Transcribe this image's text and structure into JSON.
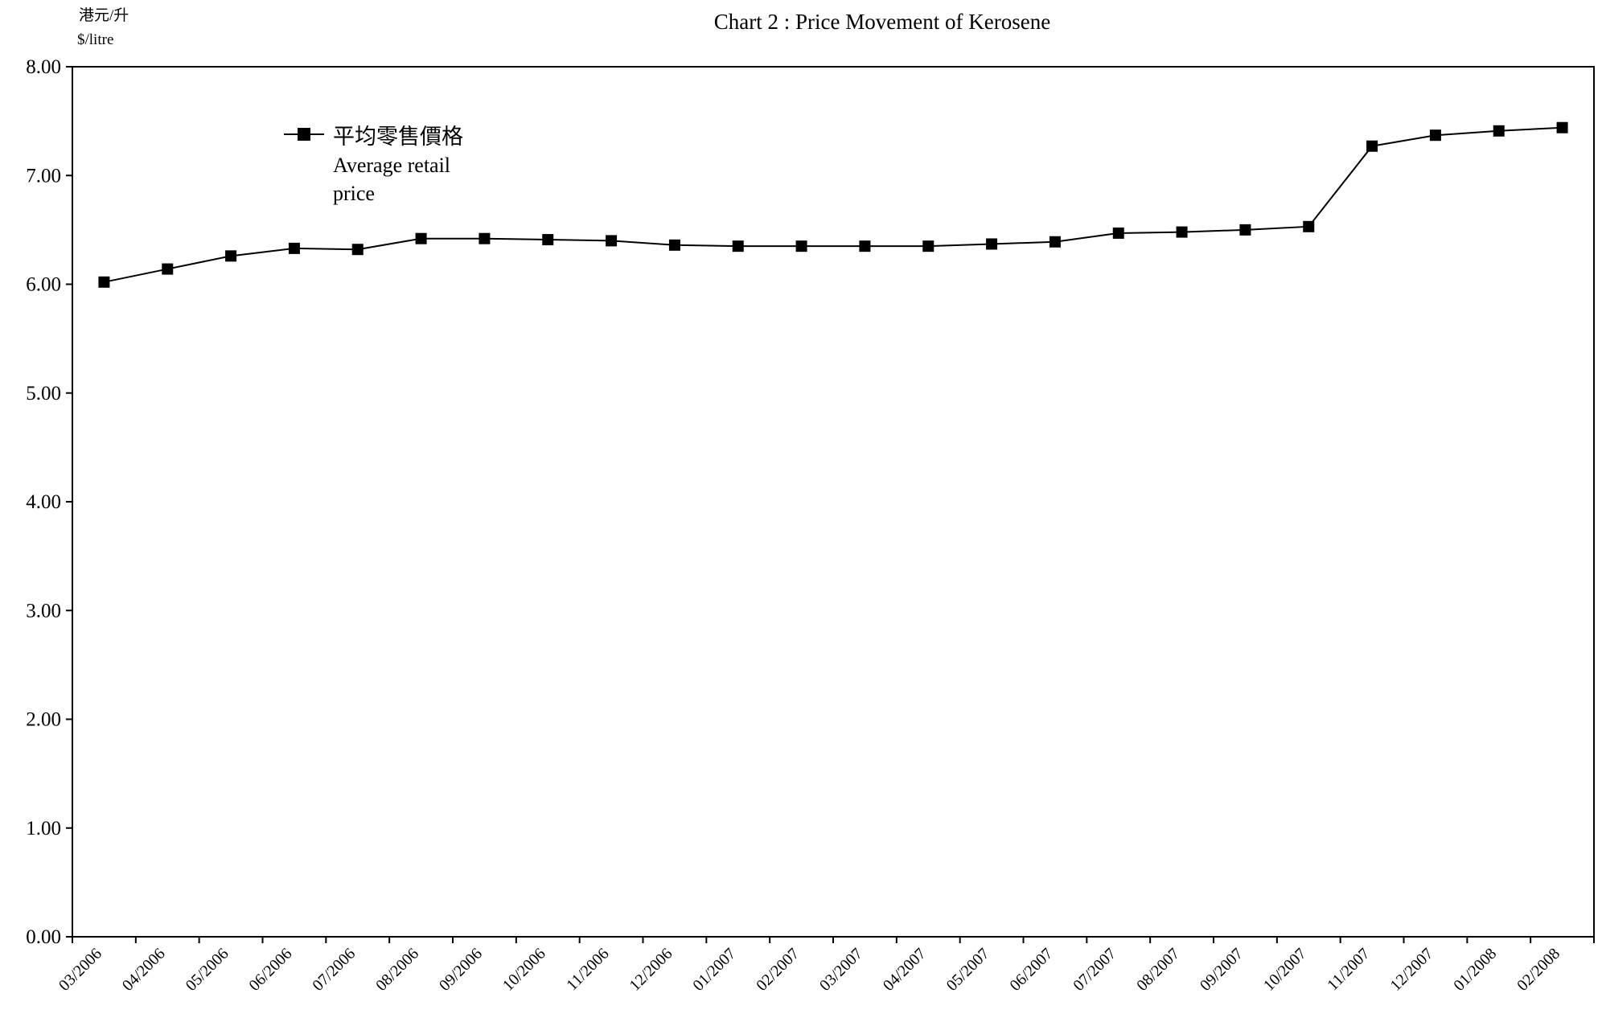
{
  "unit_label_zh": "港元/升",
  "unit_label_en": "$/litre",
  "chart_data": {
    "type": "line",
    "title": "Chart 2 :  Price Movement of Kerosene",
    "xlabel": "",
    "ylabel": "",
    "ylim": [
      0,
      8
    ],
    "yticks": [
      "0.00",
      "1.00",
      "2.00",
      "3.00",
      "4.00",
      "5.00",
      "6.00",
      "7.00",
      "8.00"
    ],
    "categories": [
      "03/2006",
      "04/2006",
      "05/2006",
      "06/2006",
      "07/2006",
      "08/2006",
      "09/2006",
      "10/2006",
      "11/2006",
      "12/2006",
      "01/2007",
      "02/2007",
      "03/2007",
      "04/2007",
      "05/2007",
      "06/2007",
      "07/2007",
      "08/2007",
      "09/2007",
      "10/2007",
      "11/2007",
      "12/2007",
      "01/2008",
      "02/2008"
    ],
    "series": [
      {
        "name_zh": "平均零售價格",
        "name_en_line1": "Average retail",
        "name_en_line2": "price",
        "color": "#000000",
        "marker": "square",
        "values": [
          6.02,
          6.14,
          6.26,
          6.33,
          6.32,
          6.42,
          6.42,
          6.41,
          6.4,
          6.36,
          6.35,
          6.35,
          6.35,
          6.35,
          6.37,
          6.39,
          6.47,
          6.48,
          6.5,
          6.53,
          7.27,
          7.37,
          7.41,
          7.44
        ]
      }
    ],
    "grid": false,
    "legend_position": "top-left"
  }
}
